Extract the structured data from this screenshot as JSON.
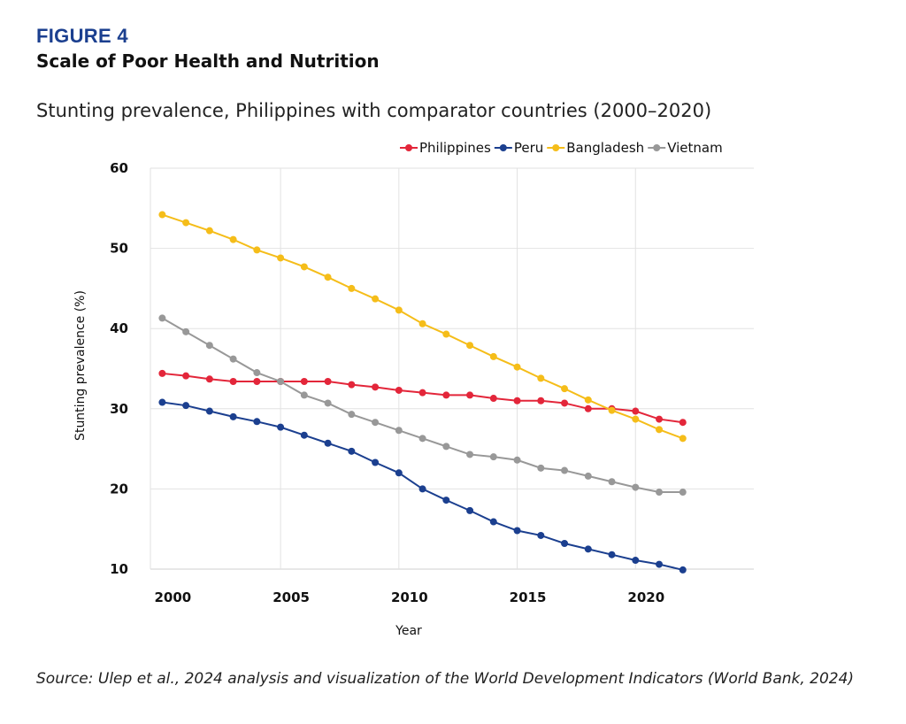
{
  "figure_label": "FIGURE 4",
  "figure_title": "Scale of Poor Health and Nutrition",
  "source": "Source: Ulep et al., 2024 analysis and visualization of the World Development Indicators (World Bank, 2024)",
  "chart_data": {
    "type": "line",
    "title": "Stunting prevalence, Philippines with comparator countries (2000–2020)",
    "xlabel": "Year",
    "ylabel": "Stunting prevalence (%)",
    "xlim": [
      1999.5,
      2025
    ],
    "ylim": [
      10,
      60
    ],
    "x_ticks": [
      2000,
      2005,
      2010,
      2015,
      2020
    ],
    "y_ticks": [
      10,
      20,
      30,
      40,
      50,
      60
    ],
    "grid": true,
    "legend_position": "top-right",
    "x": [
      2000,
      2001,
      2002,
      2003,
      2004,
      2005,
      2006,
      2007,
      2008,
      2009,
      2010,
      2011,
      2012,
      2013,
      2014,
      2015,
      2016,
      2017,
      2018,
      2019,
      2020,
      2021,
      2022
    ],
    "series": [
      {
        "name": "Philippines",
        "color": "#e3263a",
        "values": [
          34.4,
          34.1,
          33.7,
          33.4,
          33.4,
          33.4,
          33.4,
          33.4,
          33.0,
          32.7,
          32.3,
          32.0,
          31.7,
          31.7,
          31.3,
          31.0,
          31.0,
          30.7,
          30.0,
          30.0,
          29.7,
          28.7,
          28.3
        ]
      },
      {
        "name": "Peru",
        "color": "#1b3f8f",
        "values": [
          30.8,
          30.4,
          29.7,
          29.0,
          28.4,
          27.7,
          26.7,
          25.7,
          24.7,
          23.3,
          22.0,
          20.0,
          18.6,
          17.3,
          15.9,
          14.8,
          14.2,
          13.2,
          12.5,
          11.8,
          11.1,
          10.6,
          9.9
        ]
      },
      {
        "name": "Bangladesh",
        "color": "#f5bd19",
        "values": [
          54.2,
          53.2,
          52.2,
          51.1,
          49.8,
          48.8,
          47.7,
          46.4,
          45.0,
          43.7,
          42.3,
          40.6,
          39.3,
          37.9,
          36.5,
          35.2,
          33.8,
          32.5,
          31.1,
          29.8,
          28.7,
          27.4,
          26.3
        ]
      },
      {
        "name": "Vietnam",
        "color": "#989898",
        "values": [
          41.3,
          39.6,
          37.9,
          36.2,
          34.5,
          33.4,
          31.7,
          30.7,
          29.3,
          28.3,
          27.3,
          26.3,
          25.3,
          24.3,
          24.0,
          23.6,
          22.6,
          22.3,
          21.6,
          20.9,
          20.2,
          19.6,
          19.6
        ]
      }
    ]
  }
}
